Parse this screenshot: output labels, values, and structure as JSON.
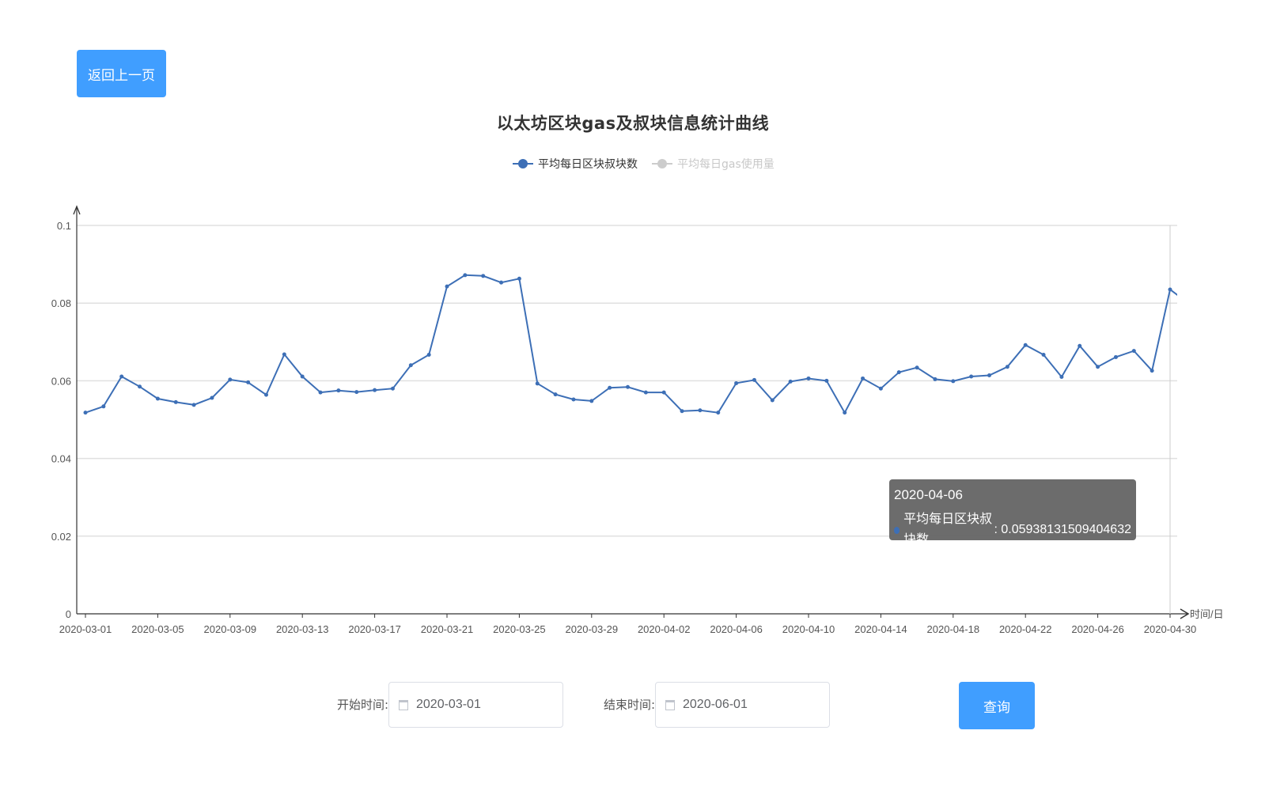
{
  "back_button": {
    "label": "返回上一页"
  },
  "form": {
    "start_label": "开始时间:",
    "start_value": "2020-03-01",
    "end_label": "结束时间:",
    "end_value": "2020-06-01",
    "query_label": "查询"
  },
  "tooltip": {
    "date": "2020-04-06",
    "series_name": "平均每日区块叔块数",
    "value": "0.05938131509404632"
  },
  "colors": {
    "primary_button": "#409eff",
    "series_line": "#3d6fb6",
    "legend_inactive": "#cccccc",
    "tooltip_bg": "#646464"
  },
  "chart_data": {
    "type": "line",
    "title": "以太坊区块gas及叔块信息统计曲线",
    "xlabel": "时间/日",
    "ylabel": "",
    "ylim": [
      0,
      0.1
    ],
    "y_ticks": [
      "0",
      "0.02",
      "0.04",
      "0.06",
      "0.08",
      "0.1"
    ],
    "x_tick_labels": [
      "2020-03-01",
      "2020-03-05",
      "2020-03-09",
      "2020-03-13",
      "2020-03-17",
      "2020-03-21",
      "2020-03-25",
      "2020-03-29",
      "2020-04-02",
      "2020-04-06",
      "2020-04-10",
      "2020-04-14",
      "2020-04-18",
      "2020-04-22",
      "2020-04-26",
      "2020-04-30"
    ],
    "legend": [
      {
        "name": "平均每日区块叔块数",
        "active": true
      },
      {
        "name": "平均每日gas使用量",
        "active": false
      }
    ],
    "grid": true,
    "categories": [
      "2020-03-01",
      "2020-03-02",
      "2020-03-03",
      "2020-03-04",
      "2020-03-05",
      "2020-03-06",
      "2020-03-07",
      "2020-03-08",
      "2020-03-09",
      "2020-03-10",
      "2020-03-11",
      "2020-03-12",
      "2020-03-13",
      "2020-03-14",
      "2020-03-15",
      "2020-03-16",
      "2020-03-17",
      "2020-03-18",
      "2020-03-19",
      "2020-03-20",
      "2020-03-21",
      "2020-03-22",
      "2020-03-23",
      "2020-03-24",
      "2020-03-25",
      "2020-03-26",
      "2020-03-27",
      "2020-03-28",
      "2020-03-29",
      "2020-03-30",
      "2020-03-31",
      "2020-04-01",
      "2020-04-02",
      "2020-04-03",
      "2020-04-04",
      "2020-04-05",
      "2020-04-06",
      "2020-04-07",
      "2020-04-08",
      "2020-04-09",
      "2020-04-10",
      "2020-04-11",
      "2020-04-12",
      "2020-04-13",
      "2020-04-14",
      "2020-04-15",
      "2020-04-16",
      "2020-04-17",
      "2020-04-18",
      "2020-04-19",
      "2020-04-20",
      "2020-04-21",
      "2020-04-22",
      "2020-04-23",
      "2020-04-24",
      "2020-04-25",
      "2020-04-26",
      "2020-04-27",
      "2020-04-28",
      "2020-04-29",
      "2020-04-30",
      "2020-05-01"
    ],
    "series": [
      {
        "name": "平均每日区块叔块数",
        "values": [
          0.0518,
          0.0534,
          0.0611,
          0.0585,
          0.0554,
          0.0545,
          0.0538,
          0.0556,
          0.0603,
          0.0596,
          0.0564,
          0.0668,
          0.0611,
          0.057,
          0.0575,
          0.0571,
          0.0576,
          0.058,
          0.064,
          0.0667,
          0.0843,
          0.0872,
          0.087,
          0.0853,
          0.0863,
          0.0593,
          0.0565,
          0.0552,
          0.0548,
          0.0582,
          0.0584,
          0.057,
          0.057,
          0.0522,
          0.0524,
          0.0518,
          0.05938131509404632,
          0.0602,
          0.055,
          0.0598,
          0.0606,
          0.06,
          0.0518,
          0.0606,
          0.058,
          0.0622,
          0.0634,
          0.0604,
          0.0599,
          0.0611,
          0.0614,
          0.0636,
          0.0692,
          0.0667,
          0.061,
          0.069,
          0.0636,
          0.0661,
          0.0677,
          0.0626,
          0.0835,
          0.08
        ]
      }
    ]
  }
}
